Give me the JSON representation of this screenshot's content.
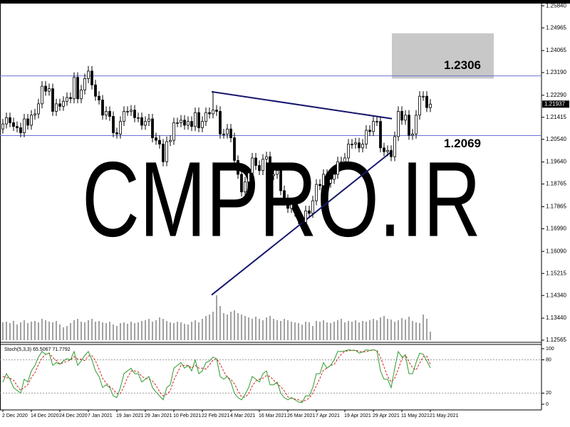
{
  "chart_data": {
    "type": "candlestick",
    "watermark": "CMPRO.IR",
    "categories": [
      "2 Dec 2020",
      null,
      null,
      null,
      null,
      null,
      null,
      null,
      "14 Dec 2020",
      null,
      null,
      null,
      null,
      null,
      null,
      null,
      "24 Dec 2020",
      null,
      null,
      null,
      null,
      null,
      null,
      null,
      "7 Jan 2021",
      null,
      null,
      null,
      null,
      null,
      null,
      null,
      "19 Jan 2021",
      null,
      null,
      null,
      null,
      null,
      null,
      null,
      "29 Jan 2021",
      null,
      null,
      null,
      null,
      null,
      null,
      null,
      "10 Feb 2021",
      null,
      null,
      null,
      null,
      null,
      null,
      null,
      "22 Feb 2021",
      null,
      null,
      null,
      null,
      null,
      null,
      null,
      "4 Mar 2021",
      null,
      null,
      null,
      null,
      null,
      null,
      null,
      "16 Mar 2021",
      null,
      null,
      null,
      null,
      null,
      null,
      null,
      "26 Mar 2021",
      null,
      null,
      null,
      null,
      null,
      null,
      null,
      "7 Apr 2021",
      null,
      null,
      null,
      null,
      null,
      null,
      null,
      "19 Apr 2021",
      null,
      null,
      null,
      null,
      null,
      null,
      null,
      "29 Apr 2021",
      null,
      null,
      null,
      null,
      null,
      null,
      null,
      "11 May 2021",
      null,
      null,
      null,
      null,
      null,
      null,
      null,
      "21 May 2021"
    ],
    "ohlc": [
      [
        1.2095,
        1.2135,
        1.2077,
        1.2115
      ],
      [
        1.2115,
        1.216,
        1.2097,
        1.214
      ],
      [
        1.214,
        1.216,
        1.2102,
        1.212
      ],
      [
        1.212,
        1.214,
        1.2087,
        1.2105
      ],
      [
        1.2105,
        1.2125,
        1.2082,
        1.21
      ],
      [
        1.21,
        1.212,
        1.2062,
        1.208
      ],
      [
        1.208,
        1.2155,
        1.2062,
        1.2135
      ],
      [
        1.2135,
        1.2155,
        1.2092,
        1.211
      ],
      [
        1.211,
        1.217,
        1.2092,
        1.215
      ],
      [
        1.215,
        1.2175,
        1.2132,
        1.2155
      ],
      [
        1.2155,
        1.2215,
        1.2137,
        1.2195
      ],
      [
        1.2195,
        1.2285,
        1.2177,
        1.2265
      ],
      [
        1.2265,
        1.2285,
        1.2227,
        1.2245
      ],
      [
        1.2245,
        1.2275,
        1.2227,
        1.2255
      ],
      [
        1.2255,
        1.2275,
        1.2147,
        1.2165
      ],
      [
        1.2165,
        1.2215,
        1.2147,
        1.2195
      ],
      [
        1.2195,
        1.2215,
        1.2167,
        1.2185
      ],
      [
        1.2185,
        1.2225,
        1.2167,
        1.2205
      ],
      [
        1.2205,
        1.224,
        1.2187,
        1.222
      ],
      [
        1.222,
        1.224,
        1.2197,
        1.2215
      ],
      [
        1.2215,
        1.232,
        1.2197,
        1.23
      ],
      [
        1.23,
        1.232,
        1.2197,
        1.2215
      ],
      [
        1.2215,
        1.227,
        1.2197,
        1.225
      ],
      [
        1.225,
        1.2315,
        1.2232,
        1.2295
      ],
      [
        1.2295,
        1.2345,
        1.2277,
        1.2325
      ],
      [
        1.2325,
        1.2345,
        1.2252,
        1.227
      ],
      [
        1.227,
        1.229,
        1.2207,
        1.2225
      ],
      [
        1.2225,
        1.2245,
        1.2192,
        1.221
      ],
      [
        1.221,
        1.223,
        1.2132,
        1.215
      ],
      [
        1.215,
        1.2185,
        1.2132,
        1.2165
      ],
      [
        1.2165,
        1.2185,
        1.2127,
        1.2145
      ],
      [
        1.2145,
        1.2165,
        1.2062,
        1.208
      ],
      [
        1.208,
        1.21,
        1.2057,
        1.2075
      ],
      [
        1.2075,
        1.2145,
        1.2057,
        1.2125
      ],
      [
        1.2125,
        1.2185,
        1.2107,
        1.2165
      ],
      [
        1.2165,
        1.2185,
        1.2147,
        1.2165
      ],
      [
        1.2165,
        1.219,
        1.2147,
        1.217
      ],
      [
        1.217,
        1.219,
        1.2122,
        1.214
      ],
      [
        1.214,
        1.216,
        1.2122,
        1.214
      ],
      [
        1.214,
        1.216,
        1.2092,
        1.211
      ],
      [
        1.211,
        1.2145,
        1.2092,
        1.2125
      ],
      [
        1.2125,
        1.2155,
        1.2107,
        1.2135
      ],
      [
        1.2135,
        1.2155,
        1.2042,
        1.206
      ],
      [
        1.206,
        1.208,
        1.2032,
        1.205
      ],
      [
        1.205,
        1.207,
        1.2017,
        1.2035
      ],
      [
        1.2035,
        1.2055,
        1.1947,
        1.1965
      ],
      [
        1.1965,
        1.2065,
        1.1947,
        1.2045
      ],
      [
        1.2045,
        1.207,
        1.2027,
        1.205
      ],
      [
        1.205,
        1.214,
        1.2032,
        1.212
      ],
      [
        1.212,
        1.214,
        1.2102,
        1.212
      ],
      [
        1.212,
        1.215,
        1.2102,
        1.213
      ],
      [
        1.213,
        1.215,
        1.2092,
        1.211
      ],
      [
        1.211,
        1.2145,
        1.2092,
        1.2125
      ],
      [
        1.2125,
        1.2145,
        1.2087,
        1.2105
      ],
      [
        1.2105,
        1.218,
        1.2087,
        1.216
      ],
      [
        1.216,
        1.218,
        1.2082,
        1.21
      ],
      [
        1.21,
        1.2145,
        1.2082,
        1.2125
      ],
      [
        1.2125,
        1.218,
        1.2107,
        1.216
      ],
      [
        1.216,
        1.218,
        1.2137,
        1.2155
      ],
      [
        1.2155,
        1.2243,
        1.2137,
        1.217
      ],
      [
        1.217,
        1.219,
        1.2147,
        1.2165
      ],
      [
        1.2165,
        1.2185,
        1.2057,
        1.2075
      ],
      [
        1.2075,
        1.2095,
        1.2057,
        1.2075
      ],
      [
        1.2075,
        1.2115,
        1.2057,
        1.2095
      ],
      [
        1.2095,
        1.2115,
        1.2042,
        1.206
      ],
      [
        1.206,
        1.208,
        1.1952,
        1.197
      ],
      [
        1.197,
        1.199,
        1.1897,
        1.1915
      ],
      [
        1.1915,
        1.1935,
        1.1827,
        1.1845
      ],
      [
        1.1845,
        1.1905,
        1.1827,
        1.1885
      ],
      [
        1.1885,
        1.194,
        1.1867,
        1.192
      ],
      [
        1.192,
        1.2,
        1.1902,
        1.198
      ],
      [
        1.198,
        1.2,
        1.1932,
        1.195
      ],
      [
        1.195,
        1.197,
        1.1912,
        1.193
      ],
      [
        1.193,
        1.1995,
        1.1912,
        1.1975
      ],
      [
        1.1975,
        1.2005,
        1.1957,
        1.1985
      ],
      [
        1.1985,
        1.2005,
        1.1892,
        1.191
      ],
      [
        1.191,
        1.1935,
        1.1892,
        1.1915
      ],
      [
        1.1915,
        1.195,
        1.1897,
        1.193
      ],
      [
        1.193,
        1.195,
        1.1832,
        1.185
      ],
      [
        1.185,
        1.187,
        1.1797,
        1.1815
      ],
      [
        1.1815,
        1.1835,
        1.1762,
        1.178
      ],
      [
        1.178,
        1.1815,
        1.1762,
        1.1795
      ],
      [
        1.1795,
        1.1815,
        1.1747,
        1.1765
      ],
      [
        1.1765,
        1.1785,
        1.1717,
        1.1735
      ],
      [
        1.1735,
        1.1755,
        1.1704,
        1.1725
      ],
      [
        1.1725,
        1.179,
        1.1707,
        1.177
      ],
      [
        1.177,
        1.179,
        1.1742,
        1.176
      ],
      [
        1.176,
        1.183,
        1.1742,
        1.181
      ],
      [
        1.181,
        1.1895,
        1.1792,
        1.1875
      ],
      [
        1.1875,
        1.1895,
        1.1852,
        1.187
      ],
      [
        1.187,
        1.1935,
        1.1852,
        1.1915
      ],
      [
        1.1915,
        1.1935,
        1.1862,
        1.188
      ],
      [
        1.188,
        1.1915,
        1.1862,
        1.1895
      ],
      [
        1.1895,
        1.1935,
        1.1877,
        1.1915
      ],
      [
        1.1915,
        1.1985,
        1.1897,
        1.1965
      ],
      [
        1.1965,
        1.1985,
        1.1947,
        1.1965
      ],
      [
        1.1965,
        1.2,
        1.1947,
        1.198
      ],
      [
        1.198,
        1.2055,
        1.1962,
        1.2035
      ],
      [
        1.2035,
        1.2055,
        1.2017,
        1.2035
      ],
      [
        1.2035,
        1.206,
        1.2017,
        1.204
      ],
      [
        1.204,
        1.206,
        1.2002,
        1.202
      ],
      [
        1.202,
        1.2055,
        1.2002,
        1.2035
      ],
      [
        1.2035,
        1.211,
        1.2017,
        1.209
      ],
      [
        1.209,
        1.211,
        1.2067,
        1.2085
      ],
      [
        1.2085,
        1.2145,
        1.2067,
        1.2125
      ],
      [
        1.2125,
        1.2145,
        1.2107,
        1.2125
      ],
      [
        1.2125,
        1.2145,
        1.2002,
        1.202
      ],
      [
        1.202,
        1.204,
        1.1987,
        1.2005
      ],
      [
        1.2005,
        1.203,
        1.1987,
        1.201
      ],
      [
        1.201,
        1.203,
        1.1967,
        1.1985
      ],
      [
        1.1985,
        1.2085,
        1.1967,
        1.2065
      ],
      [
        1.2065,
        1.2185,
        1.2047,
        1.2165
      ],
      [
        1.2165,
        1.2185,
        1.2112,
        1.213
      ],
      [
        1.213,
        1.217,
        1.2112,
        1.215
      ],
      [
        1.215,
        1.217,
        1.2052,
        1.207
      ],
      [
        1.207,
        1.2095,
        1.2052,
        1.2075
      ],
      [
        1.2075,
        1.217,
        1.2057,
        1.215
      ],
      [
        1.215,
        1.2245,
        1.2132,
        1.2225
      ],
      [
        1.2225,
        1.2245,
        1.2207,
        1.2225
      ],
      [
        1.2225,
        1.2245,
        1.2162,
        1.218
      ],
      [
        1.218,
        1.2214,
        1.2162,
        1.21937
      ]
    ],
    "volume": [
      25,
      26,
      24,
      27,
      22,
      25,
      28,
      24,
      26,
      27,
      25,
      30,
      28,
      26,
      25,
      27,
      22,
      18,
      20,
      24,
      28,
      30,
      26,
      25,
      28,
      30,
      26,
      27,
      25,
      24,
      26,
      22,
      20,
      24,
      25,
      23,
      26,
      24,
      25,
      27,
      28,
      30,
      26,
      28,
      32,
      30,
      27,
      25,
      24,
      26,
      25,
      23,
      22,
      26,
      28,
      25,
      30,
      34,
      36,
      40,
      63,
      48,
      38,
      36,
      40,
      42,
      38,
      36,
      34,
      32,
      30,
      33,
      30,
      28,
      32,
      34,
      30,
      28,
      27,
      30,
      28,
      26,
      25,
      24,
      22,
      26,
      25,
      20,
      27,
      26,
      28,
      25,
      24,
      26,
      28,
      30,
      25,
      27,
      26,
      28,
      25,
      27,
      26,
      28,
      30,
      28,
      32,
      34,
      30,
      29,
      26,
      28,
      31,
      29,
      33,
      27,
      25,
      24,
      36,
      30,
      12
    ],
    "ylim": [
      1.1248,
      1.2593
    ],
    "yticks": [
      {
        "value": 1.2584,
        "label": "1.25840"
      },
      1.24965,
      1.24065,
      {
        "value": 1.2319,
        "label": "1.23190"
      },
      {
        "value": 1.2229,
        "label": "1.22290"
      },
      1.21415,
      {
        "value": 1.2054,
        "label": "1.20540"
      },
      {
        "value": 1.1964,
        "label": "1.19640"
      },
      1.18765,
      1.17865,
      {
        "value": 1.1699,
        "label": "1.16990"
      },
      {
        "value": 1.1609,
        "label": "1.16090"
      },
      1.15215,
      {
        "value": 1.1434,
        "label": "1.14340"
      },
      {
        "value": 1.1344,
        "label": "1.13440"
      },
      1.12565
    ],
    "levels": [
      1.2306,
      1.2069
    ],
    "trendlines": [
      {
        "x1": 58.6,
        "y1": 1.2243,
        "x2": 109.2,
        "y2": 1.2136
      },
      {
        "x1": 58.6,
        "y1": 1.1436,
        "x2": 109.2,
        "y2": 1.2006
      }
    ],
    "box": {
      "x": [
        109.2,
        137.8
      ],
      "y": [
        1.2295,
        1.2475
      ]
    },
    "colors": {
      "candle": "#000000",
      "volume": "#444444",
      "level": "#6f6fd8",
      "trendline": "#16166e",
      "level_label": "#e3141c",
      "box": "#c8c8c8",
      "k": "#2f9a2f",
      "d": "#d42020",
      "watermark": "#ebebeb"
    },
    "stoch": {
      "label": "Stoch(5,3,3) 65.5067 71.7792",
      "ylim": [
        0,
        100
      ],
      "yticks": [
        100,
        80,
        20,
        0
      ],
      "levels": [
        80,
        20
      ],
      "k": [
        40,
        55,
        45,
        30,
        25,
        20,
        45,
        40,
        60,
        70,
        85,
        95,
        90,
        92,
        70,
        75,
        72,
        78,
        82,
        80,
        95,
        70,
        78,
        88,
        95,
        80,
        60,
        50,
        30,
        35,
        30,
        15,
        12,
        30,
        55,
        60,
        65,
        55,
        55,
        40,
        45,
        50,
        30,
        22,
        15,
        8,
        30,
        35,
        65,
        70,
        75,
        65,
        70,
        60,
        80,
        55,
        60,
        75,
        78,
        85,
        82,
        50,
        45,
        50,
        40,
        20,
        12,
        8,
        18,
        30,
        50,
        45,
        40,
        55,
        60,
        35,
        35,
        40,
        20,
        12,
        8,
        12,
        8,
        4,
        3,
        15,
        15,
        30,
        55,
        55,
        75,
        65,
        70,
        80,
        95,
        95,
        96,
        98,
        97,
        97,
        92,
        94,
        98,
        97,
        98,
        96,
        60,
        45,
        45,
        30,
        65,
        95,
        85,
        88,
        55,
        55,
        75,
        92,
        90,
        78,
        65.5067
      ],
      "d": [
        50,
        48,
        46.7,
        43.3,
        33.3,
        25,
        30,
        35,
        48.3,
        56.7,
        71.7,
        83.3,
        90,
        92.3,
        84,
        79,
        72.3,
        75,
        77.3,
        80,
        85.7,
        81.7,
        81,
        78.7,
        87,
        87.7,
        78.3,
        63.3,
        46.7,
        38.3,
        31.7,
        26.7,
        19,
        19,
        32.3,
        48.3,
        60,
        60,
        58.3,
        50,
        46.7,
        45,
        41.7,
        34,
        22.3,
        15,
        17.7,
        24.3,
        43.3,
        56.7,
        70,
        70,
        70,
        65,
        70,
        65,
        65,
        63.3,
        71,
        79.3,
        81.7,
        72.3,
        59,
        48.3,
        45,
        36.7,
        24,
        13.3,
        12.7,
        18.7,
        32.7,
        41.7,
        45,
        46.7,
        51.7,
        50,
        43.3,
        36.7,
        31.7,
        24,
        13.3,
        10.7,
        9.3,
        8,
        5,
        7.3,
        11,
        20,
        33.3,
        46.7,
        61.7,
        65,
        70,
        71.7,
        81.7,
        90,
        95.3,
        96.3,
        97,
        97.3,
        95.3,
        94.3,
        94.7,
        96.3,
        97.7,
        97,
        84.7,
        67,
        50,
        40,
        46.7,
        63.3,
        81.7,
        89.3,
        76,
        66,
        61.7,
        74,
        85.7,
        86.7,
        71.7792
      ]
    }
  }
}
